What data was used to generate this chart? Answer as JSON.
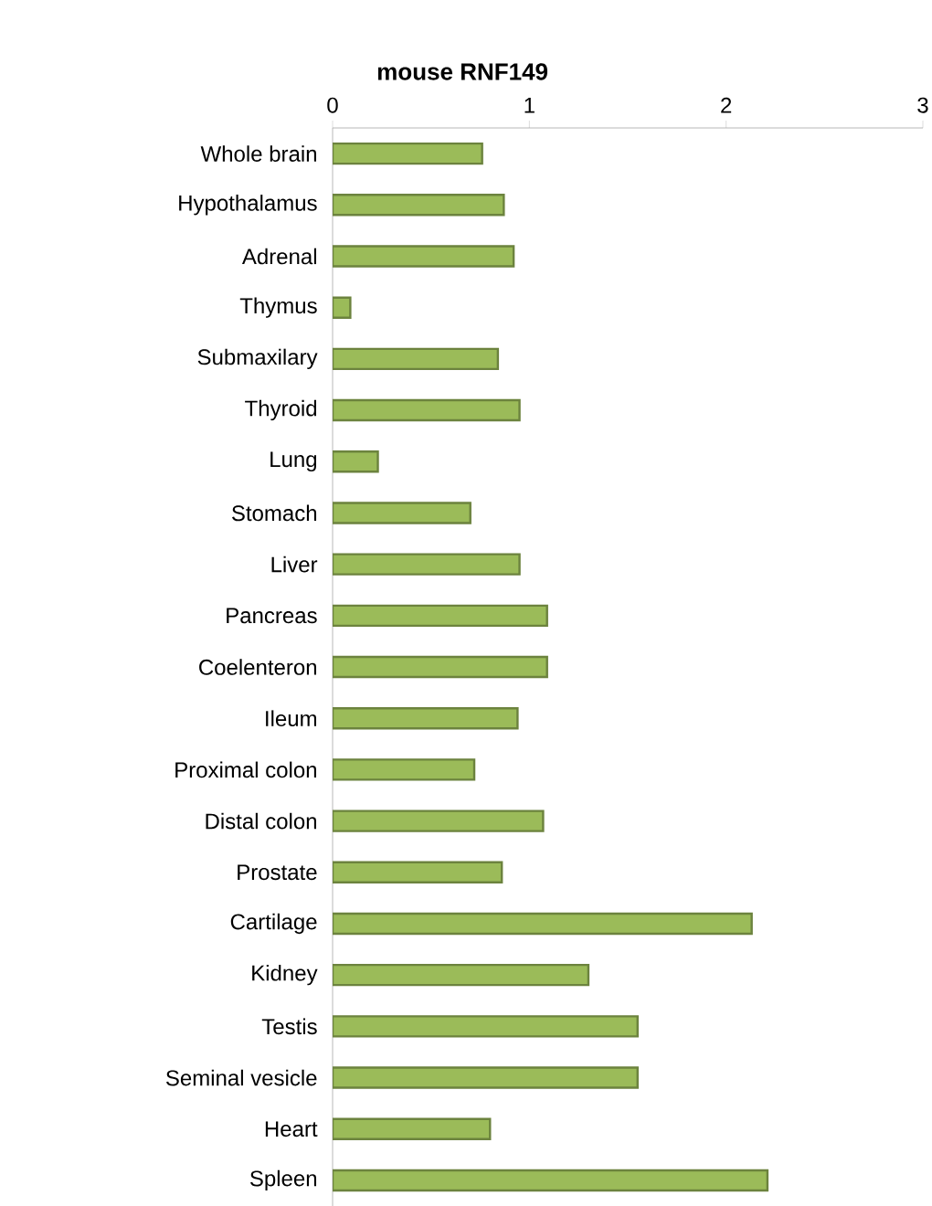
{
  "chart_data": {
    "type": "bar",
    "orientation": "horizontal",
    "title": "mouse RNF149",
    "categories": [
      "Whole brain",
      "Hypothalamus",
      "Adrenal",
      "Thymus",
      "Submaxilary",
      "Thyroid",
      "Lung",
      "Stomach",
      "Liver",
      "Pancreas",
      "Coelenteron",
      "Ileum",
      "Proximal colon",
      "Distal colon",
      "Prostate",
      "Cartilage",
      "Kidney",
      "Testis",
      "Seminal vesicle",
      "Heart",
      "Spleen"
    ],
    "values": [
      0.76,
      0.87,
      0.92,
      0.09,
      0.84,
      0.95,
      0.23,
      0.7,
      0.95,
      1.09,
      1.09,
      0.94,
      0.72,
      1.07,
      0.86,
      2.13,
      1.3,
      1.55,
      1.55,
      0.8,
      2.21
    ],
    "color": "#9bbb59",
    "xlim": [
      0,
      3
    ],
    "xticks": [
      0,
      1,
      2,
      3
    ]
  }
}
